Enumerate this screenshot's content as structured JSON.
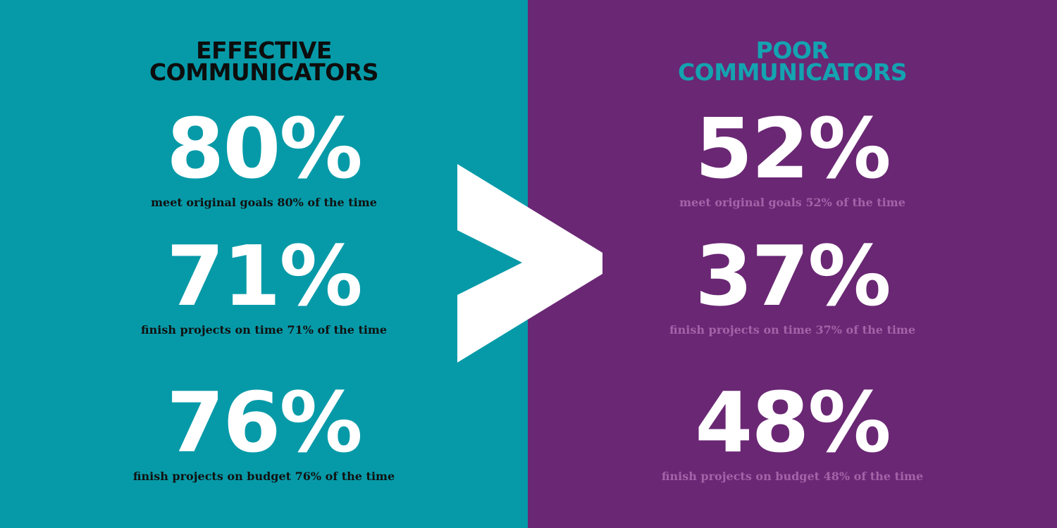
{
  "left": {
    "title_line1": "EFFECTIVE",
    "title_line2": "COMMUNICATORS",
    "stats": [
      {
        "value": "80%",
        "caption": "meet original goals 80% of the time"
      },
      {
        "value": "71%",
        "caption": "finish projects on time 71% of the time"
      },
      {
        "value": "76%",
        "caption": "finish projects on budget 76% of the time"
      }
    ],
    "background_color": "#069aa8"
  },
  "right": {
    "title_line1": "POOR",
    "title_line2": "COMMUNICATORS",
    "stats": [
      {
        "value": "52%",
        "caption": "meet original goals 52% of the time"
      },
      {
        "value": "37%",
        "caption": "finish projects on time 37% of the time"
      },
      {
        "value": "48%",
        "caption": "finish projects on budget 48% of the time"
      }
    ],
    "background_color": "#6a2774"
  },
  "comparator_icon": "greater-than-icon"
}
